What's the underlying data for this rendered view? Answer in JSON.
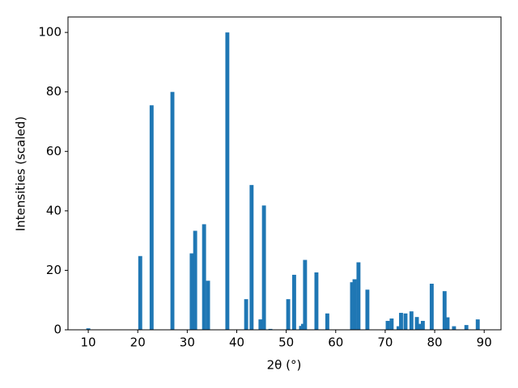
{
  "chart_data": {
    "type": "bar",
    "x_label": "2θ (°)",
    "y_label": "Intensities (scaled)",
    "x": [
      10.0,
      20.5,
      22.8,
      27.0,
      30.9,
      31.6,
      33.4,
      34.2,
      38.1,
      41.9,
      43.0,
      44.8,
      45.5,
      46.8,
      50.4,
      51.6,
      53.0,
      53.4,
      53.8,
      56.1,
      58.3,
      63.3,
      63.8,
      64.6,
      66.4,
      70.5,
      71.3,
      72.7,
      73.2,
      74.1,
      75.3,
      76.4,
      76.9,
      77.6,
      79.4,
      82.0,
      82.6,
      83.9,
      86.4,
      88.7
    ],
    "values": [
      0.5,
      24.8,
      75.5,
      80.0,
      25.7,
      33.3,
      35.5,
      16.5,
      100.0,
      10.3,
      48.7,
      3.5,
      41.8,
      0.3,
      10.3,
      18.5,
      1.3,
      2.0,
      23.5,
      19.3,
      5.5,
      16.0,
      17.0,
      22.7,
      13.5,
      3.0,
      3.8,
      1.2,
      5.7,
      5.5,
      6.2,
      4.3,
      2.0,
      3.0,
      15.5,
      13.0,
      4.2,
      1.2,
      1.6,
      3.5
    ],
    "color": "#1f77b4",
    "xlim": [
      5.9,
      93.4
    ],
    "ylim": [
      0,
      105.2
    ],
    "xticks": [
      10,
      20,
      30,
      40,
      50,
      60,
      70,
      80,
      90
    ],
    "yticks": [
      0,
      20,
      40,
      60,
      80,
      100
    ],
    "grid": false
  }
}
